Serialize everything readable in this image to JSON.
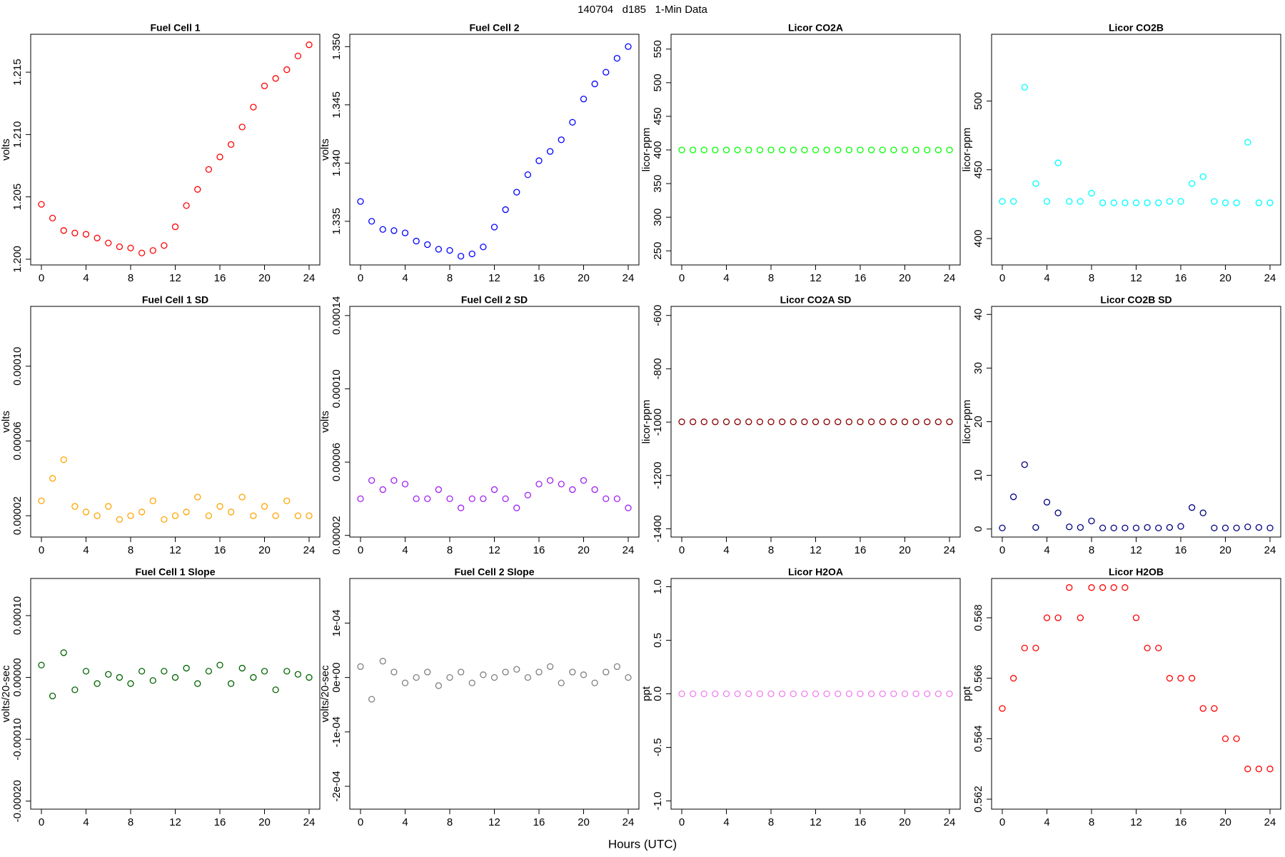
{
  "title": "140704   d185   1-Min Data",
  "xlabel": "Hours (UTC)",
  "chart_data": [
    {
      "type": "scatter",
      "title": "Fuel Cell 1",
      "ylabel": "volts",
      "color": "#ff0000",
      "x": [
        0,
        1,
        2,
        3,
        4,
        5,
        6,
        7,
        8,
        9,
        10,
        11,
        12,
        13,
        14,
        15,
        16,
        17,
        18,
        19,
        20,
        21,
        22,
        23,
        24
      ],
      "values": [
        1.2044,
        1.2033,
        1.2023,
        1.2021,
        1.202,
        1.2017,
        1.2013,
        1.201,
        1.2009,
        1.2005,
        1.2007,
        1.2011,
        1.2026,
        1.2043,
        1.2056,
        1.2072,
        1.2082,
        1.2092,
        1.2106,
        1.2122,
        1.2139,
        1.2145,
        1.2152,
        1.2163,
        1.2172
      ],
      "xlim": [
        -0.96,
        24.96
      ],
      "xticks": [
        0,
        4,
        8,
        12,
        16,
        20,
        24
      ],
      "ylim": [
        1.19954,
        1.21804
      ],
      "yticks": [
        {
          "value": 1.2,
          "label": "1.200"
        },
        1.205,
        {
          "value": 1.21,
          "label": "1.210"
        },
        1.215
      ]
    },
    {
      "type": "scatter",
      "title": "Fuel Cell 2",
      "ylabel": "volts",
      "color": "#0000ff",
      "x": [
        0,
        1,
        2,
        3,
        4,
        5,
        6,
        7,
        8,
        9,
        10,
        11,
        12,
        13,
        14,
        15,
        16,
        17,
        18,
        19,
        20,
        21,
        22,
        23,
        24
      ],
      "values": [
        1.3367,
        1.335,
        1.3343,
        1.3342,
        1.334,
        1.3333,
        1.333,
        1.3326,
        1.3325,
        1.332,
        1.3322,
        1.3328,
        1.3345,
        1.336,
        1.3375,
        1.339,
        1.3402,
        1.341,
        1.342,
        1.3435,
        1.3455,
        1.3468,
        1.3478,
        1.349,
        1.35
      ],
      "xlim": [
        -0.96,
        24.96
      ],
      "xticks": [
        0,
        4,
        8,
        12,
        16,
        20,
        24
      ],
      "ylim": [
        1.33125,
        1.35106
      ],
      "yticks": [
        1.335,
        {
          "value": 1.34,
          "label": "1.340"
        },
        1.345,
        {
          "value": 1.35,
          "label": "1.350"
        }
      ]
    },
    {
      "type": "scatter",
      "title": "Licor CO2A",
      "ylabel": "licor-ppm",
      "color": "#00ff00",
      "x": [
        0,
        1,
        2,
        3,
        4,
        5,
        6,
        7,
        8,
        9,
        10,
        11,
        12,
        13,
        14,
        15,
        16,
        17,
        18,
        19,
        20,
        21,
        22,
        23,
        24
      ],
      "values": [
        400,
        400,
        400,
        400,
        400,
        400,
        400,
        400,
        400,
        400,
        400,
        400,
        400,
        400,
        400,
        400,
        400,
        400,
        400,
        400,
        400,
        400,
        400,
        400,
        400
      ],
      "xlim": [
        -0.96,
        24.96
      ],
      "xticks": [
        0,
        4,
        8,
        12,
        16,
        20,
        24
      ],
      "ylim": [
        229,
        572
      ],
      "yticks": [
        250,
        300,
        350,
        400,
        450,
        500,
        550
      ]
    },
    {
      "type": "scatter",
      "title": "Licor CO2B",
      "ylabel": "licor-ppm",
      "color": "#00ffff",
      "x": [
        0,
        1,
        2,
        3,
        4,
        5,
        6,
        7,
        8,
        9,
        10,
        11,
        12,
        13,
        14,
        15,
        16,
        17,
        18,
        19,
        20,
        21,
        22,
        23,
        24
      ],
      "values": [
        427,
        427,
        510,
        440,
        427,
        455,
        427,
        427,
        433,
        426,
        426,
        426,
        426,
        426,
        426,
        427,
        427,
        440,
        445,
        427,
        426,
        426,
        470,
        426,
        426
      ],
      "xlim": [
        -0.96,
        24.96
      ],
      "xticks": [
        0,
        4,
        8,
        12,
        16,
        20,
        24
      ],
      "ylim": [
        380.8,
        548.5
      ],
      "yticks": [
        400,
        450,
        500
      ]
    },
    {
      "type": "scatter",
      "title": "Fuel Cell 1 SD",
      "ylabel": "volts",
      "color": "#ffa500",
      "x": [
        0,
        1,
        2,
        3,
        4,
        5,
        6,
        7,
        8,
        9,
        10,
        11,
        12,
        13,
        14,
        15,
        16,
        17,
        18,
        19,
        20,
        21,
        22,
        23,
        24
      ],
      "values": [
        2.8e-05,
        4e-05,
        5e-05,
        2.5e-05,
        2.2e-05,
        2e-05,
        2.5e-05,
        1.8e-05,
        2e-05,
        2.2e-05,
        2.8e-05,
        1.8e-05,
        2e-05,
        2.2e-05,
        3e-05,
        2e-05,
        2.5e-05,
        2.2e-05,
        3e-05,
        2e-05,
        2.5e-05,
        2e-05,
        2.8e-05,
        2e-05,
        2e-05
      ],
      "xlim": [
        -0.96,
        24.96
      ],
      "xticks": [
        0,
        4,
        8,
        12,
        16,
        20,
        24
      ],
      "ylim": [
        8.6e-06,
        0.000132
      ],
      "yticks": [
        {
          "value": 2e-05,
          "label": "0.00002"
        },
        {
          "value": 6e-05,
          "label": "0.00006"
        },
        {
          "value": 0.0001,
          "label": "0.00010"
        }
      ]
    },
    {
      "type": "scatter",
      "title": "Fuel Cell 2 SD",
      "ylabel": "volts",
      "color": "#a020f0",
      "x": [
        0,
        1,
        2,
        3,
        4,
        5,
        6,
        7,
        8,
        9,
        10,
        11,
        12,
        13,
        14,
        15,
        16,
        17,
        18,
        19,
        20,
        21,
        22,
        23,
        24
      ],
      "values": [
        4e-05,
        5e-05,
        4.5e-05,
        5e-05,
        4.8e-05,
        4e-05,
        4e-05,
        4.5e-05,
        4e-05,
        3.5e-05,
        4e-05,
        4e-05,
        4.5e-05,
        4e-05,
        3.5e-05,
        4.2e-05,
        4.8e-05,
        5e-05,
        4.8e-05,
        4.5e-05,
        5e-05,
        4.5e-05,
        4e-05,
        4e-05,
        3.5e-05
      ],
      "xlim": [
        -0.96,
        24.96
      ],
      "xticks": [
        0,
        4,
        8,
        12,
        16,
        20,
        24
      ],
      "ylim": [
        1.91e-05,
        0.000145
      ],
      "yticks": [
        {
          "value": 2e-05,
          "label": "0.00002"
        },
        {
          "value": 6e-05,
          "label": "0.00006"
        },
        {
          "value": 0.0001,
          "label": "0.00010"
        },
        {
          "value": 0.00014,
          "label": "0.00014"
        }
      ]
    },
    {
      "type": "scatter",
      "title": "Licor CO2A SD",
      "ylabel": "licor-ppm",
      "color": "#8b0000",
      "x": [
        0,
        1,
        2,
        3,
        4,
        5,
        6,
        7,
        8,
        9,
        10,
        11,
        12,
        13,
        14,
        15,
        16,
        17,
        18,
        19,
        20,
        21,
        22,
        23,
        24
      ],
      "values": [
        -999,
        -999,
        -999,
        -999,
        -999,
        -999,
        -999,
        -999,
        -999,
        -999,
        -999,
        -999,
        -999,
        -999,
        -999,
        -999,
        -999,
        -999,
        -999,
        -999,
        -999,
        -999,
        -999,
        -999,
        -999
      ],
      "xlim": [
        -0.96,
        24.96
      ],
      "xticks": [
        0,
        4,
        8,
        12,
        16,
        20,
        24
      ],
      "ylim": [
        -1431,
        -566
      ],
      "yticks": [
        -1400,
        -1200,
        -1000,
        -800,
        -600
      ]
    },
    {
      "type": "scatter",
      "title": "Licor CO2B SD",
      "ylabel": "licor-ppm",
      "color": "#000080",
      "x": [
        0,
        1,
        2,
        3,
        4,
        5,
        6,
        7,
        8,
        9,
        10,
        11,
        12,
        13,
        14,
        15,
        16,
        17,
        18,
        19,
        20,
        21,
        22,
        23,
        24
      ],
      "values": [
        0.2,
        6,
        12,
        0.3,
        5,
        3,
        0.4,
        0.3,
        1.5,
        0.2,
        0.2,
        0.2,
        0.2,
        0.3,
        0.2,
        0.3,
        0.5,
        4,
        3,
        0.2,
        0.2,
        0.2,
        0.4,
        0.3,
        0.2
      ],
      "xlim": [
        -0.96,
        24.96
      ],
      "xticks": [
        0,
        4,
        8,
        12,
        16,
        20,
        24
      ],
      "ylim": [
        -1.5,
        41.5
      ],
      "yticks": [
        0,
        10,
        20,
        30,
        40
      ]
    },
    {
      "type": "scatter",
      "title": "Fuel Cell 1 Slope",
      "ylabel": "volts/20-sec",
      "color": "#006400",
      "x": [
        0,
        1,
        2,
        3,
        4,
        5,
        6,
        7,
        8,
        9,
        10,
        11,
        12,
        13,
        14,
        15,
        16,
        17,
        18,
        19,
        20,
        21,
        22,
        23,
        24
      ],
      "values": [
        2e-05,
        -3e-05,
        4e-05,
        -2e-05,
        1e-05,
        -1e-05,
        5e-06,
        0,
        -1e-05,
        1e-05,
        -5e-06,
        1e-05,
        0,
        1.5e-05,
        -1e-05,
        1e-05,
        2e-05,
        -1e-05,
        1.5e-05,
        0,
        1e-05,
        -2e-05,
        1e-05,
        5e-06,
        0
      ],
      "xlim": [
        -0.96,
        24.96
      ],
      "xticks": [
        0,
        4,
        8,
        12,
        16,
        20,
        24
      ],
      "ylim": [
        -0.000213,
        0.00016
      ],
      "yticks": [
        {
          "value": -0.0002,
          "label": "-0.00020"
        },
        {
          "value": -0.0001,
          "label": "-0.00010"
        },
        {
          "value": 0,
          "label": "0.00000"
        },
        {
          "value": 0.0001,
          "label": "0.00010"
        }
      ]
    },
    {
      "type": "scatter",
      "title": "Fuel Cell 2 Slope",
      "ylabel": "volts/20-sec",
      "color": "#808080",
      "x": [
        0,
        1,
        2,
        3,
        4,
        5,
        6,
        7,
        8,
        9,
        10,
        11,
        12,
        13,
        14,
        15,
        16,
        17,
        18,
        19,
        20,
        21,
        22,
        23,
        24
      ],
      "values": [
        2e-05,
        -4e-05,
        3e-05,
        1e-05,
        -1e-05,
        0,
        1e-05,
        -1.5e-05,
        0,
        1e-05,
        -1e-05,
        5e-06,
        0,
        1e-05,
        1.5e-05,
        0,
        1e-05,
        2e-05,
        -1e-05,
        1e-05,
        5e-06,
        -1e-05,
        1e-05,
        2e-05,
        0
      ],
      "xlim": [
        -0.96,
        24.96
      ],
      "xticks": [
        0,
        4,
        8,
        12,
        16,
        20,
        24
      ],
      "ylim": [
        -0.000242,
        0.000182
      ],
      "yticks": [
        {
          "value": -0.0002,
          "label": "-2e-04"
        },
        {
          "value": -0.0001,
          "label": "-1e-04"
        },
        {
          "value": 0,
          "label": "0e+00"
        },
        {
          "value": 0.0001,
          "label": "1e-04"
        }
      ]
    },
    {
      "type": "scatter",
      "title": "Licor H2OA",
      "ylabel": "ppt",
      "color": "#ee82ee",
      "x": [
        0,
        1,
        2,
        3,
        4,
        5,
        6,
        7,
        8,
        9,
        10,
        11,
        12,
        13,
        14,
        15,
        16,
        17,
        18,
        19,
        20,
        21,
        22,
        23,
        24
      ],
      "values": [
        0,
        0,
        0,
        0,
        0,
        0,
        0,
        0,
        0,
        0,
        0,
        0,
        0,
        0,
        0,
        0,
        0,
        0,
        0,
        0,
        0,
        0,
        0,
        0,
        0
      ],
      "xlim": [
        -0.96,
        24.96
      ],
      "xticks": [
        0,
        4,
        8,
        12,
        16,
        20,
        24
      ],
      "ylim": [
        -1.077,
        1.077
      ],
      "yticks": [
        {
          "value": -1,
          "label": "-1.0"
        },
        -0.5,
        {
          "value": 0,
          "label": "0.0"
        },
        0.5,
        {
          "value": 1,
          "label": "1.0"
        }
      ]
    },
    {
      "type": "scatter",
      "title": "Licor H2OB",
      "ylabel": "ppt",
      "color": "#ff0000",
      "x": [
        0,
        1,
        2,
        3,
        4,
        5,
        6,
        7,
        8,
        9,
        10,
        11,
        12,
        13,
        14,
        15,
        16,
        17,
        18,
        19,
        20,
        21,
        22,
        23,
        24
      ],
      "values": [
        0.565,
        0.566,
        0.567,
        0.567,
        0.568,
        0.568,
        0.569,
        0.568,
        0.569,
        0.569,
        0.569,
        0.569,
        0.568,
        0.567,
        0.567,
        0.566,
        0.566,
        0.566,
        0.565,
        0.565,
        0.564,
        0.564,
        0.563,
        0.563,
        0.563
      ],
      "xlim": [
        -0.96,
        24.96
      ],
      "xticks": [
        0,
        4,
        8,
        12,
        16,
        20,
        24
      ],
      "ylim": [
        0.56167,
        0.5693
      ],
      "yticks": [
        0.562,
        0.564,
        0.566,
        0.568
      ]
    }
  ]
}
